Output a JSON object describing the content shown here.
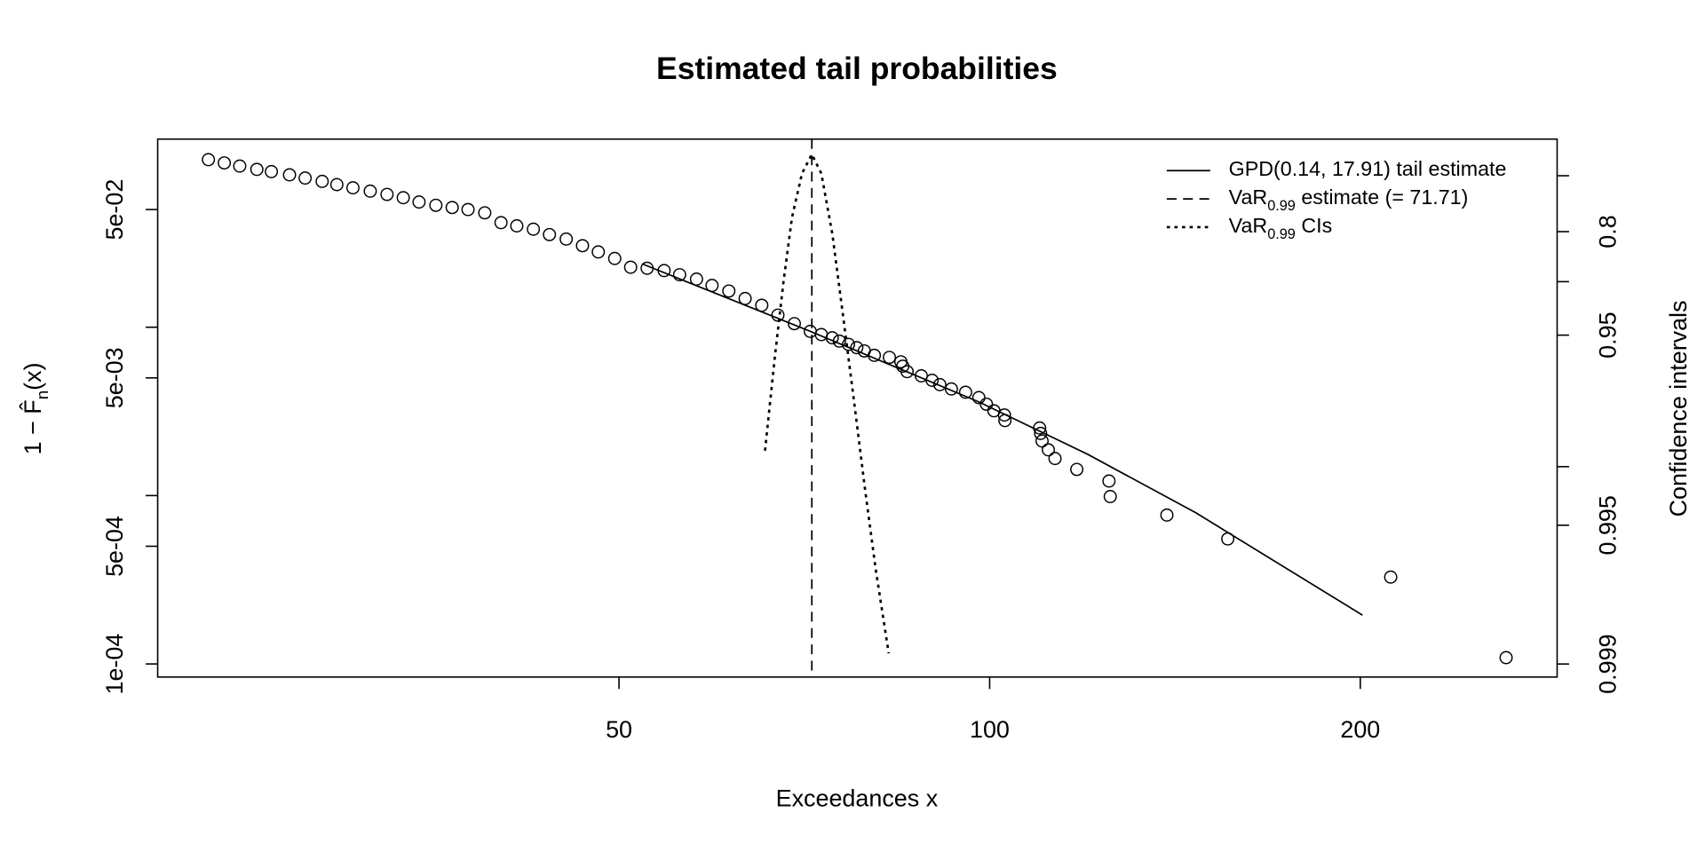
{
  "chart_data": {
    "type": "scatter",
    "title": "Estimated tail probabilities",
    "xlabel": "Exceedances x",
    "ylabel": [
      "1 − F̂",
      {
        "sub": "n"
      },
      "(x)"
    ],
    "y2label": "Confidence intervals",
    "xscale": "log",
    "yscale": "log",
    "y2scale": "chisq-quantile-df1",
    "xlim": [
      21.1,
      289
    ],
    "ylim": [
      8.36e-05,
      0.131
    ],
    "y2lim": [
      0,
      0.999
    ],
    "xticks": [
      50,
      100,
      200
    ],
    "yticks": [
      {
        "value": 0.0001,
        "label": "1e-04"
      },
      {
        "value": 0.0005,
        "label": "5e-04"
      },
      {
        "value": 0.005,
        "label": "5e-03"
      },
      {
        "value": 0.05,
        "label": "5e-02"
      }
    ],
    "yticks_unlabeled": [
      0.001,
      0.01
    ],
    "y2ticks": [
      0.8,
      0.95,
      0.995,
      0.999
    ],
    "y2ticks_unlabeled": [
      0.5,
      0.9,
      0.99
    ],
    "legend": "top-right",
    "points": {
      "x": [
        23.2,
        23.9,
        24.6,
        25.4,
        26.1,
        27.0,
        27.8,
        28.7,
        29.5,
        30.4,
        31.4,
        32.4,
        33.4,
        34.4,
        35.5,
        36.6,
        37.7,
        38.9,
        40.1,
        41.3,
        42.6,
        43.9,
        45.3,
        46.7,
        48.1,
        49.6,
        51.1,
        52.7,
        54.4,
        56.0,
        57.8,
        59.5,
        61.4,
        63.3,
        65.3,
        67.3,
        69.4,
        71.5,
        73.0,
        74.5,
        75.5,
        76.8,
        78.0,
        79.1,
        80.6,
        82.9,
        84.7,
        85.0,
        85.7,
        88.0,
        89.8,
        91.1,
        93.1,
        95.6,
        98.0,
        99.4,
        100.8,
        102.8,
        102.9,
        109.8,
        110.0,
        110.3,
        111.6,
        113.0,
        117.7,
        125.0,
        125.3,
        139.3,
        156.1,
        211.7,
        262.7
      ],
      "values": [
        0.0989,
        0.0946,
        0.0906,
        0.0866,
        0.084,
        0.0804,
        0.0769,
        0.0735,
        0.0703,
        0.0673,
        0.0643,
        0.0615,
        0.0588,
        0.0554,
        0.053,
        0.0514,
        0.05,
        0.0478,
        0.0418,
        0.04,
        0.0382,
        0.0355,
        0.0334,
        0.0305,
        0.028,
        0.0256,
        0.0227,
        0.0224,
        0.0217,
        0.0205,
        0.0193,
        0.0177,
        0.0164,
        0.0148,
        0.0135,
        0.0118,
        0.0105,
        0.00945,
        0.00904,
        0.00865,
        0.00827,
        0.00791,
        0.00756,
        0.00723,
        0.00681,
        0.00662,
        0.00623,
        0.00587,
        0.00545,
        0.00514,
        0.00484,
        0.00456,
        0.0043,
        0.00411,
        0.00382,
        0.00349,
        0.00319,
        0.00301,
        0.00279,
        0.00252,
        0.00234,
        0.00211,
        0.00187,
        0.00166,
        0.00143,
        0.00122,
        0.000987,
        0.000766,
        0.000553,
        0.000328,
        0.000109
      ]
    },
    "series": [
      {
        "name": [
          "GPD(0.14, 17.91) tail estimate"
        ],
        "style": "solid",
        "color": "#000000",
        "x": [
          52.2,
          71.5,
          98.0,
          120.1,
          147.1,
          200.8
        ],
        "values": [
          0.0238,
          0.00945,
          0.0036,
          0.00176,
          0.000789,
          0.000195
        ]
      },
      {
        "name": [
          "VaR",
          {
            "sub": "0.99"
          },
          " estimate (= 71.71)"
        ],
        "style": "dashed",
        "color": "#000000",
        "vline": true,
        "x": [
          71.71
        ]
      },
      {
        "name": [
          "VaR",
          {
            "sub": "0.99"
          },
          " CIs"
        ],
        "style": "dotted",
        "color": "#000000",
        "axis": "y2",
        "x": [
          65.7,
          66.9,
          68.0,
          69.1,
          70.4,
          71.71,
          73.0,
          74.5,
          76.0,
          77.6,
          79.2,
          80.8,
          82.8
        ],
        "values": [
          0.9879,
          0.9626,
          0.9009,
          0.753,
          0.478,
          0,
          0.478,
          0.805,
          0.935,
          0.978,
          0.9923,
          0.997,
          0.99887
        ]
      }
    ]
  }
}
